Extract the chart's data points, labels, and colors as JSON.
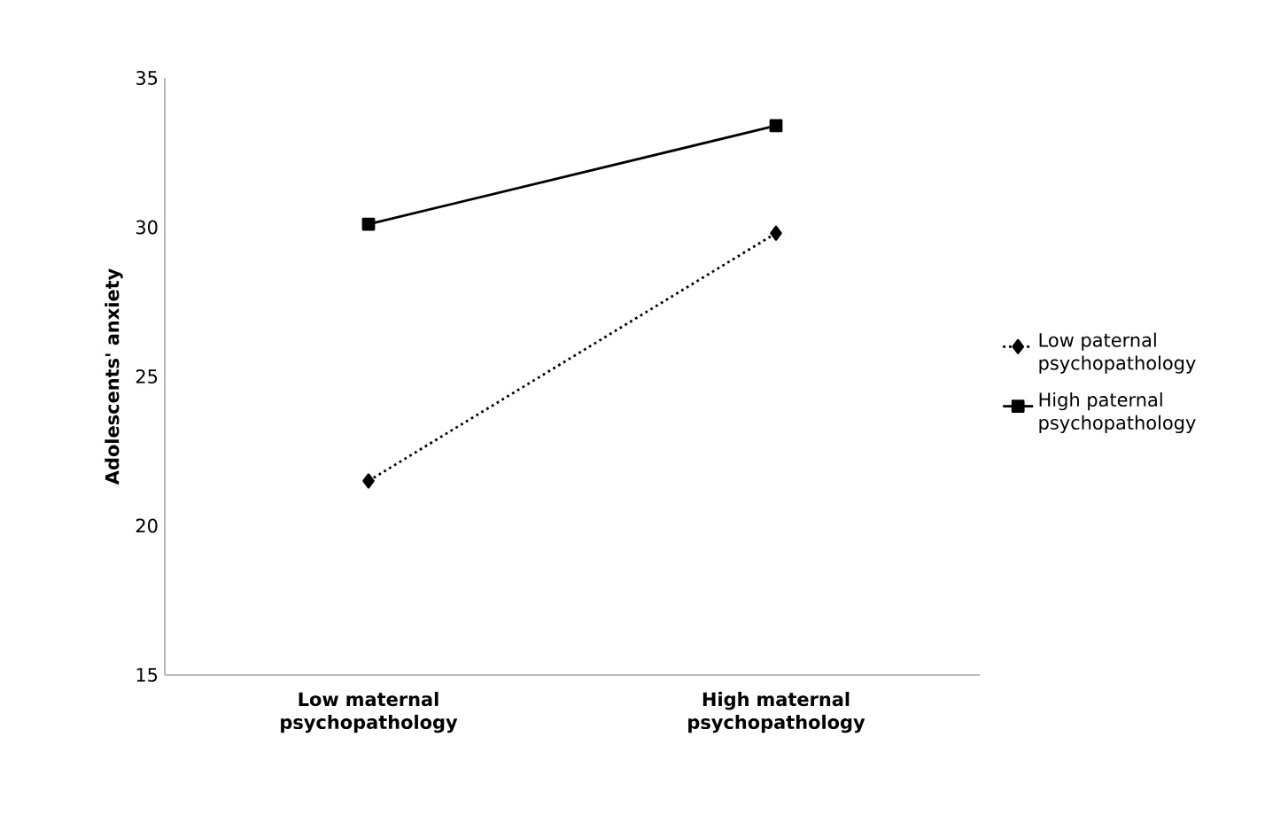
{
  "chart_data": {
    "type": "line",
    "ylabel": "Adolescents' anxiety",
    "categories": [
      "Low maternal psychopathology",
      "High maternal psychopathology"
    ],
    "series": [
      {
        "name": "Low paternal psychopathology",
        "color": "#000000",
        "values": [
          21.5,
          29.8
        ],
        "marker": "diamond",
        "line_style": "dotted"
      },
      {
        "name": "High paternal psychopathology",
        "color": "#000000",
        "values": [
          30.1,
          33.4
        ],
        "marker": "square",
        "line_style": "solid"
      }
    ],
    "ylim": [
      15,
      35
    ],
    "yticks": [
      15,
      20,
      25,
      30,
      35
    ],
    "grid": false,
    "legend": "right"
  }
}
